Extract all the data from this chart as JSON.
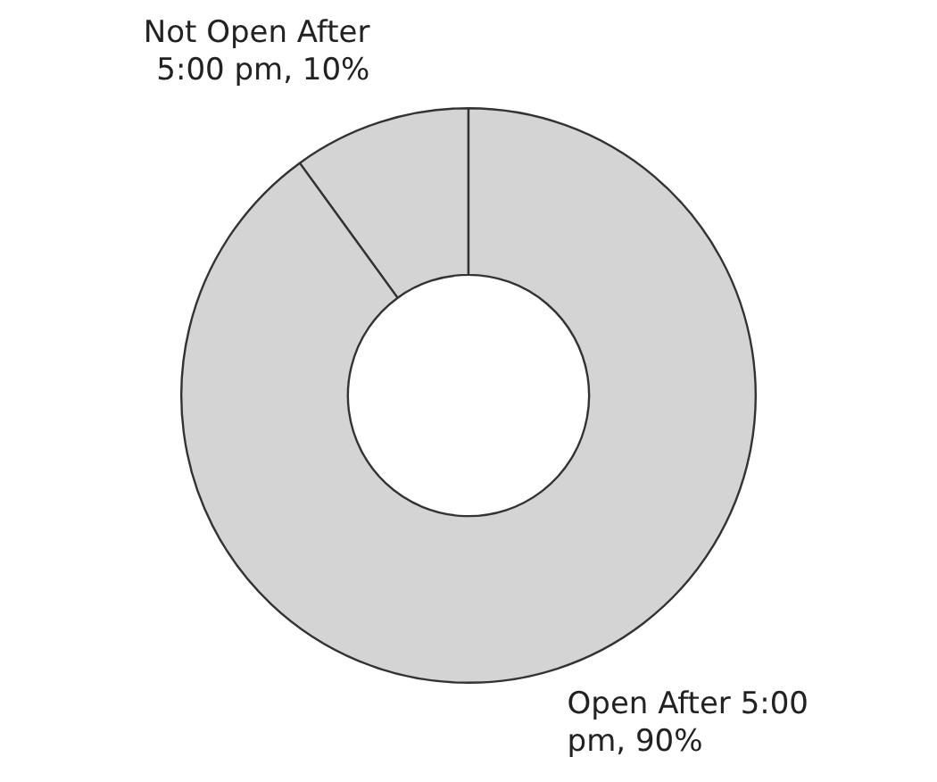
{
  "chart_data": {
    "type": "donut",
    "categories": [
      "Not Open After 5:00 pm",
      "Open After 5:00 pm"
    ],
    "values": [
      10,
      90
    ],
    "colors": [
      "#d4d4d4",
      "#d4d4d4"
    ],
    "value_labels": [
      "10%",
      "90%"
    ],
    "legend": false
  }
}
